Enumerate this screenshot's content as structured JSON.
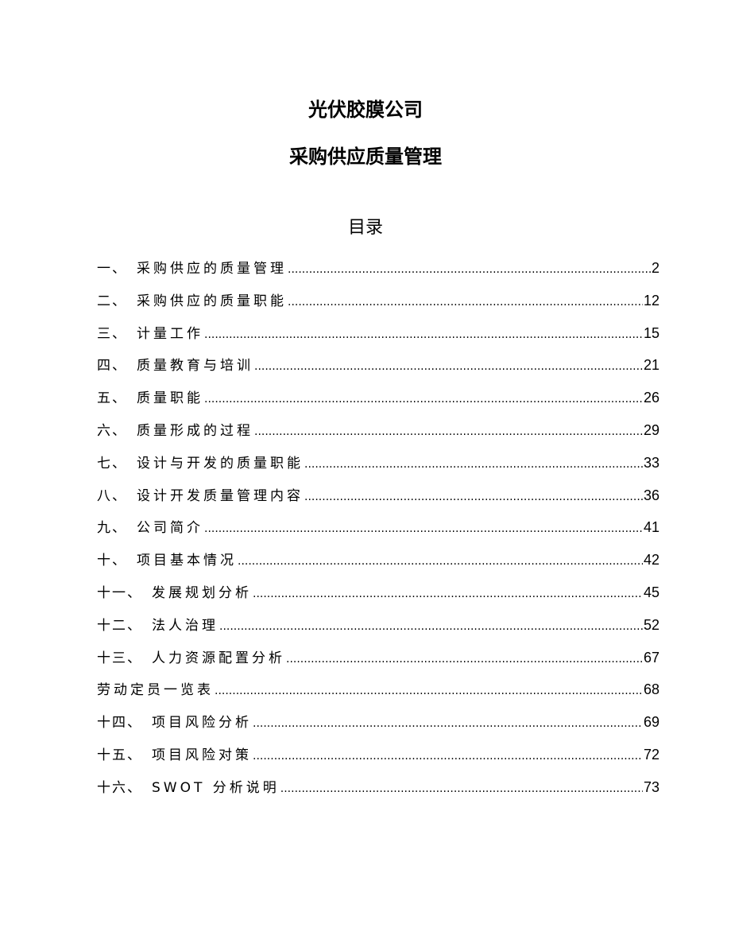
{
  "document": {
    "title": "光伏胶膜公司",
    "subtitle": "采购供应质量管理",
    "toc_heading": "目录",
    "toc": [
      {
        "num": "一、",
        "label": "采购供应的质量管理",
        "page": "2"
      },
      {
        "num": "二、",
        "label": "采购供应的质量职能",
        "page": "12"
      },
      {
        "num": "三、",
        "label": "计量工作",
        "page": "15"
      },
      {
        "num": "四、",
        "label": "质量教育与培训",
        "page": "21"
      },
      {
        "num": "五、",
        "label": "质量职能",
        "page": "26"
      },
      {
        "num": "六、",
        "label": "质量形成的过程",
        "page": "29"
      },
      {
        "num": "七、",
        "label": "设计与开发的质量职能",
        "page": "33"
      },
      {
        "num": "八、",
        "label": "设计开发质量管理内容",
        "page": "36"
      },
      {
        "num": "九、",
        "label": "公司简介",
        "page": "41"
      },
      {
        "num": "十、",
        "label": "项目基本情况",
        "page": "42"
      },
      {
        "num": "十一、",
        "label": "发展规划分析",
        "page": "45"
      },
      {
        "num": "十二、",
        "label": "法人治理",
        "page": "52"
      },
      {
        "num": "十三、",
        "label": "人力资源配置分析",
        "page": "67"
      },
      {
        "num": "",
        "label": "劳动定员一览表",
        "page": "68"
      },
      {
        "num": "十四、",
        "label": "项目风险分析",
        "page": "69"
      },
      {
        "num": "十五、",
        "label": "项目风险对策",
        "page": "72"
      },
      {
        "num": "十六、",
        "label": "SWOT 分析说明",
        "page": "73"
      }
    ]
  }
}
